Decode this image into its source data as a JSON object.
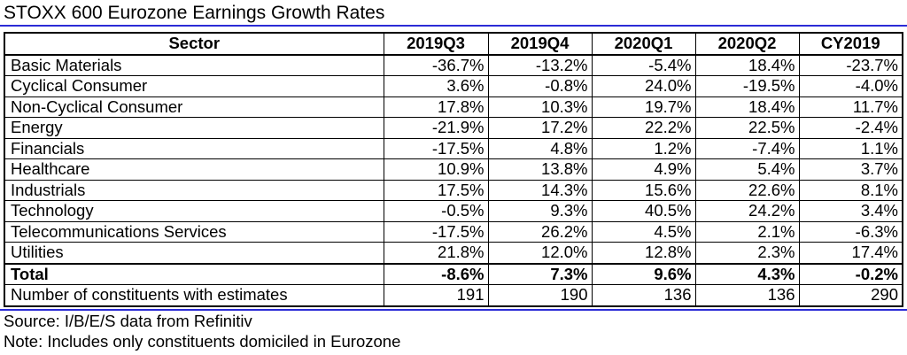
{
  "title": "STOXX 600 Eurozone Earnings Growth Rates",
  "columns": [
    "Sector",
    "2019Q3",
    "2019Q4",
    "2020Q1",
    "2020Q2",
    "CY2019"
  ],
  "rows": [
    {
      "sector": "Basic Materials",
      "values": [
        "-36.7%",
        "-13.2%",
        "-5.4%",
        "18.4%",
        "-23.7%"
      ]
    },
    {
      "sector": "Cyclical Consumer",
      "values": [
        "3.6%",
        "-0.8%",
        "24.0%",
        "-19.5%",
        "-4.0%"
      ]
    },
    {
      "sector": "Non-Cyclical Consumer",
      "values": [
        "17.8%",
        "10.3%",
        "19.7%",
        "18.4%",
        "11.7%"
      ]
    },
    {
      "sector": "Energy",
      "values": [
        "-21.9%",
        "17.2%",
        "22.2%",
        "22.5%",
        "-2.4%"
      ]
    },
    {
      "sector": "Financials",
      "values": [
        "-17.5%",
        "4.8%",
        "1.2%",
        "-7.4%",
        "1.1%"
      ]
    },
    {
      "sector": "Healthcare",
      "values": [
        "10.9%",
        "13.8%",
        "4.9%",
        "5.4%",
        "3.7%"
      ]
    },
    {
      "sector": "Industrials",
      "values": [
        "17.5%",
        "14.3%",
        "15.6%",
        "22.6%",
        "8.1%"
      ]
    },
    {
      "sector": "Technology",
      "values": [
        "-0.5%",
        "9.3%",
        "40.5%",
        "24.2%",
        "3.4%"
      ]
    },
    {
      "sector": "Telecommunications Services",
      "values": [
        "-17.5%",
        "26.2%",
        "4.5%",
        "2.1%",
        "-6.3%"
      ]
    },
    {
      "sector": "Utilities",
      "values": [
        "21.8%",
        "12.0%",
        "12.8%",
        "2.3%",
        "17.4%"
      ]
    }
  ],
  "total": {
    "sector": "Total",
    "values": [
      "-8.6%",
      "7.3%",
      "9.6%",
      "4.3%",
      "-0.2%"
    ]
  },
  "constituents": {
    "sector": "Number of constituents with estimates",
    "values": [
      "191",
      "190",
      "136",
      "136",
      "290"
    ]
  },
  "notes": {
    "source": "Source: I/B/E/S data from Refinitiv",
    "note": "Note: Includes only constituents domiciled in Eurozone"
  },
  "colors": {
    "rule": "#2b2bd6"
  }
}
